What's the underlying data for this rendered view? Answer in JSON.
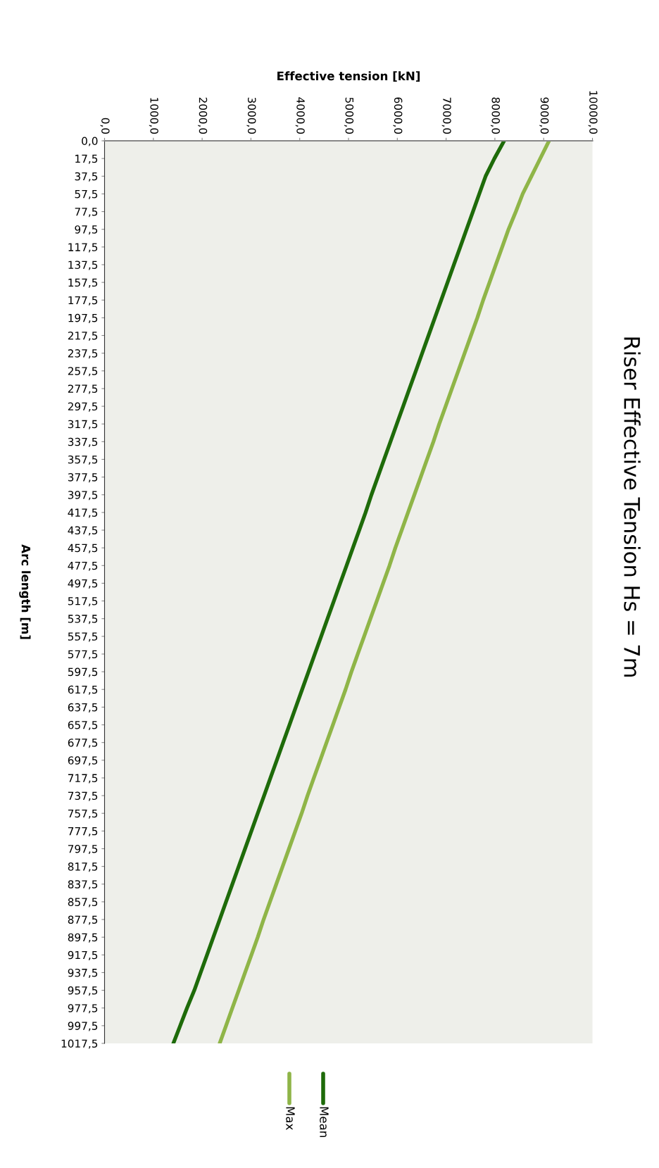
{
  "chart_data": {
    "type": "line",
    "orientation": "horizontal",
    "title": "Riser Effective Tension Hs = 7m",
    "xlabel": "Effective tension [kN]",
    "ylabel": "Arc length [m]",
    "categories": [
      "0,0",
      "17,5",
      "37,5",
      "57,5",
      "77,5",
      "97,5",
      "117,5",
      "137,5",
      "157,5",
      "177,5",
      "197,5",
      "217,5",
      "237,5",
      "257,5",
      "277,5",
      "297,5",
      "317,5",
      "337,5",
      "357,5",
      "377,5",
      "397,5",
      "417,5",
      "437,5",
      "457,5",
      "477,5",
      "497,5",
      "517,5",
      "537,5",
      "557,5",
      "577,5",
      "597,5",
      "617,5",
      "637,5",
      "657,5",
      "677,5",
      "697,5",
      "717,5",
      "737,5",
      "757,5",
      "777,5",
      "797,5",
      "817,5",
      "837,5",
      "857,5",
      "877,5",
      "897,5",
      "917,5",
      "937,5",
      "957,5",
      "977,5",
      "997,5",
      "1017,5"
    ],
    "series": [
      {
        "name": "Mean",
        "color": "#1e6b0a",
        "values": [
          8190,
          7990,
          7810,
          7680,
          7550,
          7420,
          7290,
          7160,
          7030,
          6900,
          6770,
          6640,
          6510,
          6380,
          6250,
          6120,
          5990,
          5860,
          5730,
          5600,
          5470,
          5350,
          5220,
          5090,
          4960,
          4830,
          4700,
          4570,
          4440,
          4310,
          4180,
          4050,
          3920,
          3790,
          3660,
          3530,
          3400,
          3270,
          3140,
          3010,
          2880,
          2750,
          2620,
          2490,
          2360,
          2230,
          2100,
          1970,
          1840,
          1690,
          1550,
          1410
        ]
      },
      {
        "name": "Max",
        "color": "#8fb548",
        "values": [
          9110,
          8930,
          8750,
          8570,
          8430,
          8280,
          8150,
          8020,
          7890,
          7760,
          7640,
          7510,
          7380,
          7250,
          7120,
          6990,
          6860,
          6740,
          6610,
          6480,
          6350,
          6220,
          6090,
          5960,
          5840,
          5710,
          5580,
          5450,
          5320,
          5190,
          5060,
          4940,
          4810,
          4680,
          4550,
          4420,
          4290,
          4160,
          4040,
          3910,
          3780,
          3650,
          3520,
          3390,
          3260,
          3140,
          3010,
          2880,
          2750,
          2620,
          2490,
          2360
        ]
      }
    ],
    "xlim": [
      0,
      10000
    ],
    "xticks": [
      {
        "value": 0,
        "label": "0,0"
      },
      {
        "value": 1000,
        "label": "1000,0"
      },
      {
        "value": 2000,
        "label": "2000,0"
      },
      {
        "value": 3000,
        "label": "3000,0"
      },
      {
        "value": 4000,
        "label": "4000,0"
      },
      {
        "value": 5000,
        "label": "5000,0"
      },
      {
        "value": 6000,
        "label": "6000,0"
      },
      {
        "value": 7000,
        "label": "7000,0"
      },
      {
        "value": 8000,
        "label": "8000,0"
      },
      {
        "value": 9000,
        "label": "9000,0"
      },
      {
        "value": 10000,
        "label": "10000,0"
      }
    ],
    "grid": false,
    "legend": "bottom",
    "marker": "none",
    "line_style": "solid"
  }
}
